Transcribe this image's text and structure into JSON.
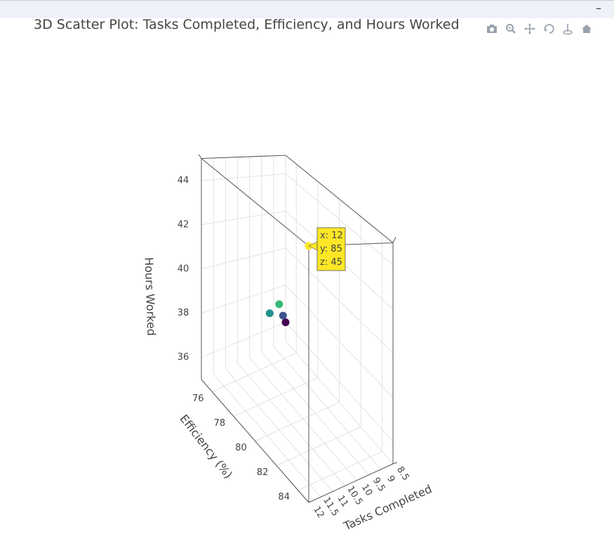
{
  "window": {
    "minimize_label": "–"
  },
  "chart_data": {
    "type": "scatter3d",
    "title": "3D Scatter Plot: Tasks Completed, Efficiency, and Hours Worked",
    "x_axis": {
      "title": "Tasks Completed",
      "ticks": [
        "8.5",
        "9",
        "9.5",
        "10",
        "10.5",
        "11",
        "11.5",
        "12"
      ],
      "range": [
        8.5,
        12
      ]
    },
    "y_axis": {
      "title": "Efficiency (%)",
      "ticks": [
        "76",
        "78",
        "80",
        "82",
        "84"
      ],
      "range": [
        75,
        85
      ]
    },
    "z_axis": {
      "title": "Hours Worked",
      "ticks": [
        "36",
        "38",
        "40",
        "42",
        "44"
      ],
      "range": [
        35,
        45
      ]
    },
    "points": [
      {
        "x": 8.5,
        "y": 75,
        "z": 36,
        "color": "#440154"
      },
      {
        "x": 9.5,
        "y": 77,
        "z": 38,
        "color": "#3b528b"
      },
      {
        "x": 10.5,
        "y": 78,
        "z": 39,
        "color": "#21918c"
      },
      {
        "x": 11,
        "y": 80,
        "z": 40.5,
        "color": "#35b779"
      },
      {
        "x": 12,
        "y": 85,
        "z": 45,
        "color": "#fde725"
      }
    ],
    "hover": {
      "x": "x: 12",
      "y": "y: 85",
      "z": "z: 45"
    },
    "grid": true,
    "colorscale": "viridis"
  },
  "modebar": {
    "icons": [
      "camera-icon",
      "zoom-icon",
      "pan-icon",
      "orbit-rotate-icon",
      "turntable-icon",
      "home-icon"
    ]
  }
}
